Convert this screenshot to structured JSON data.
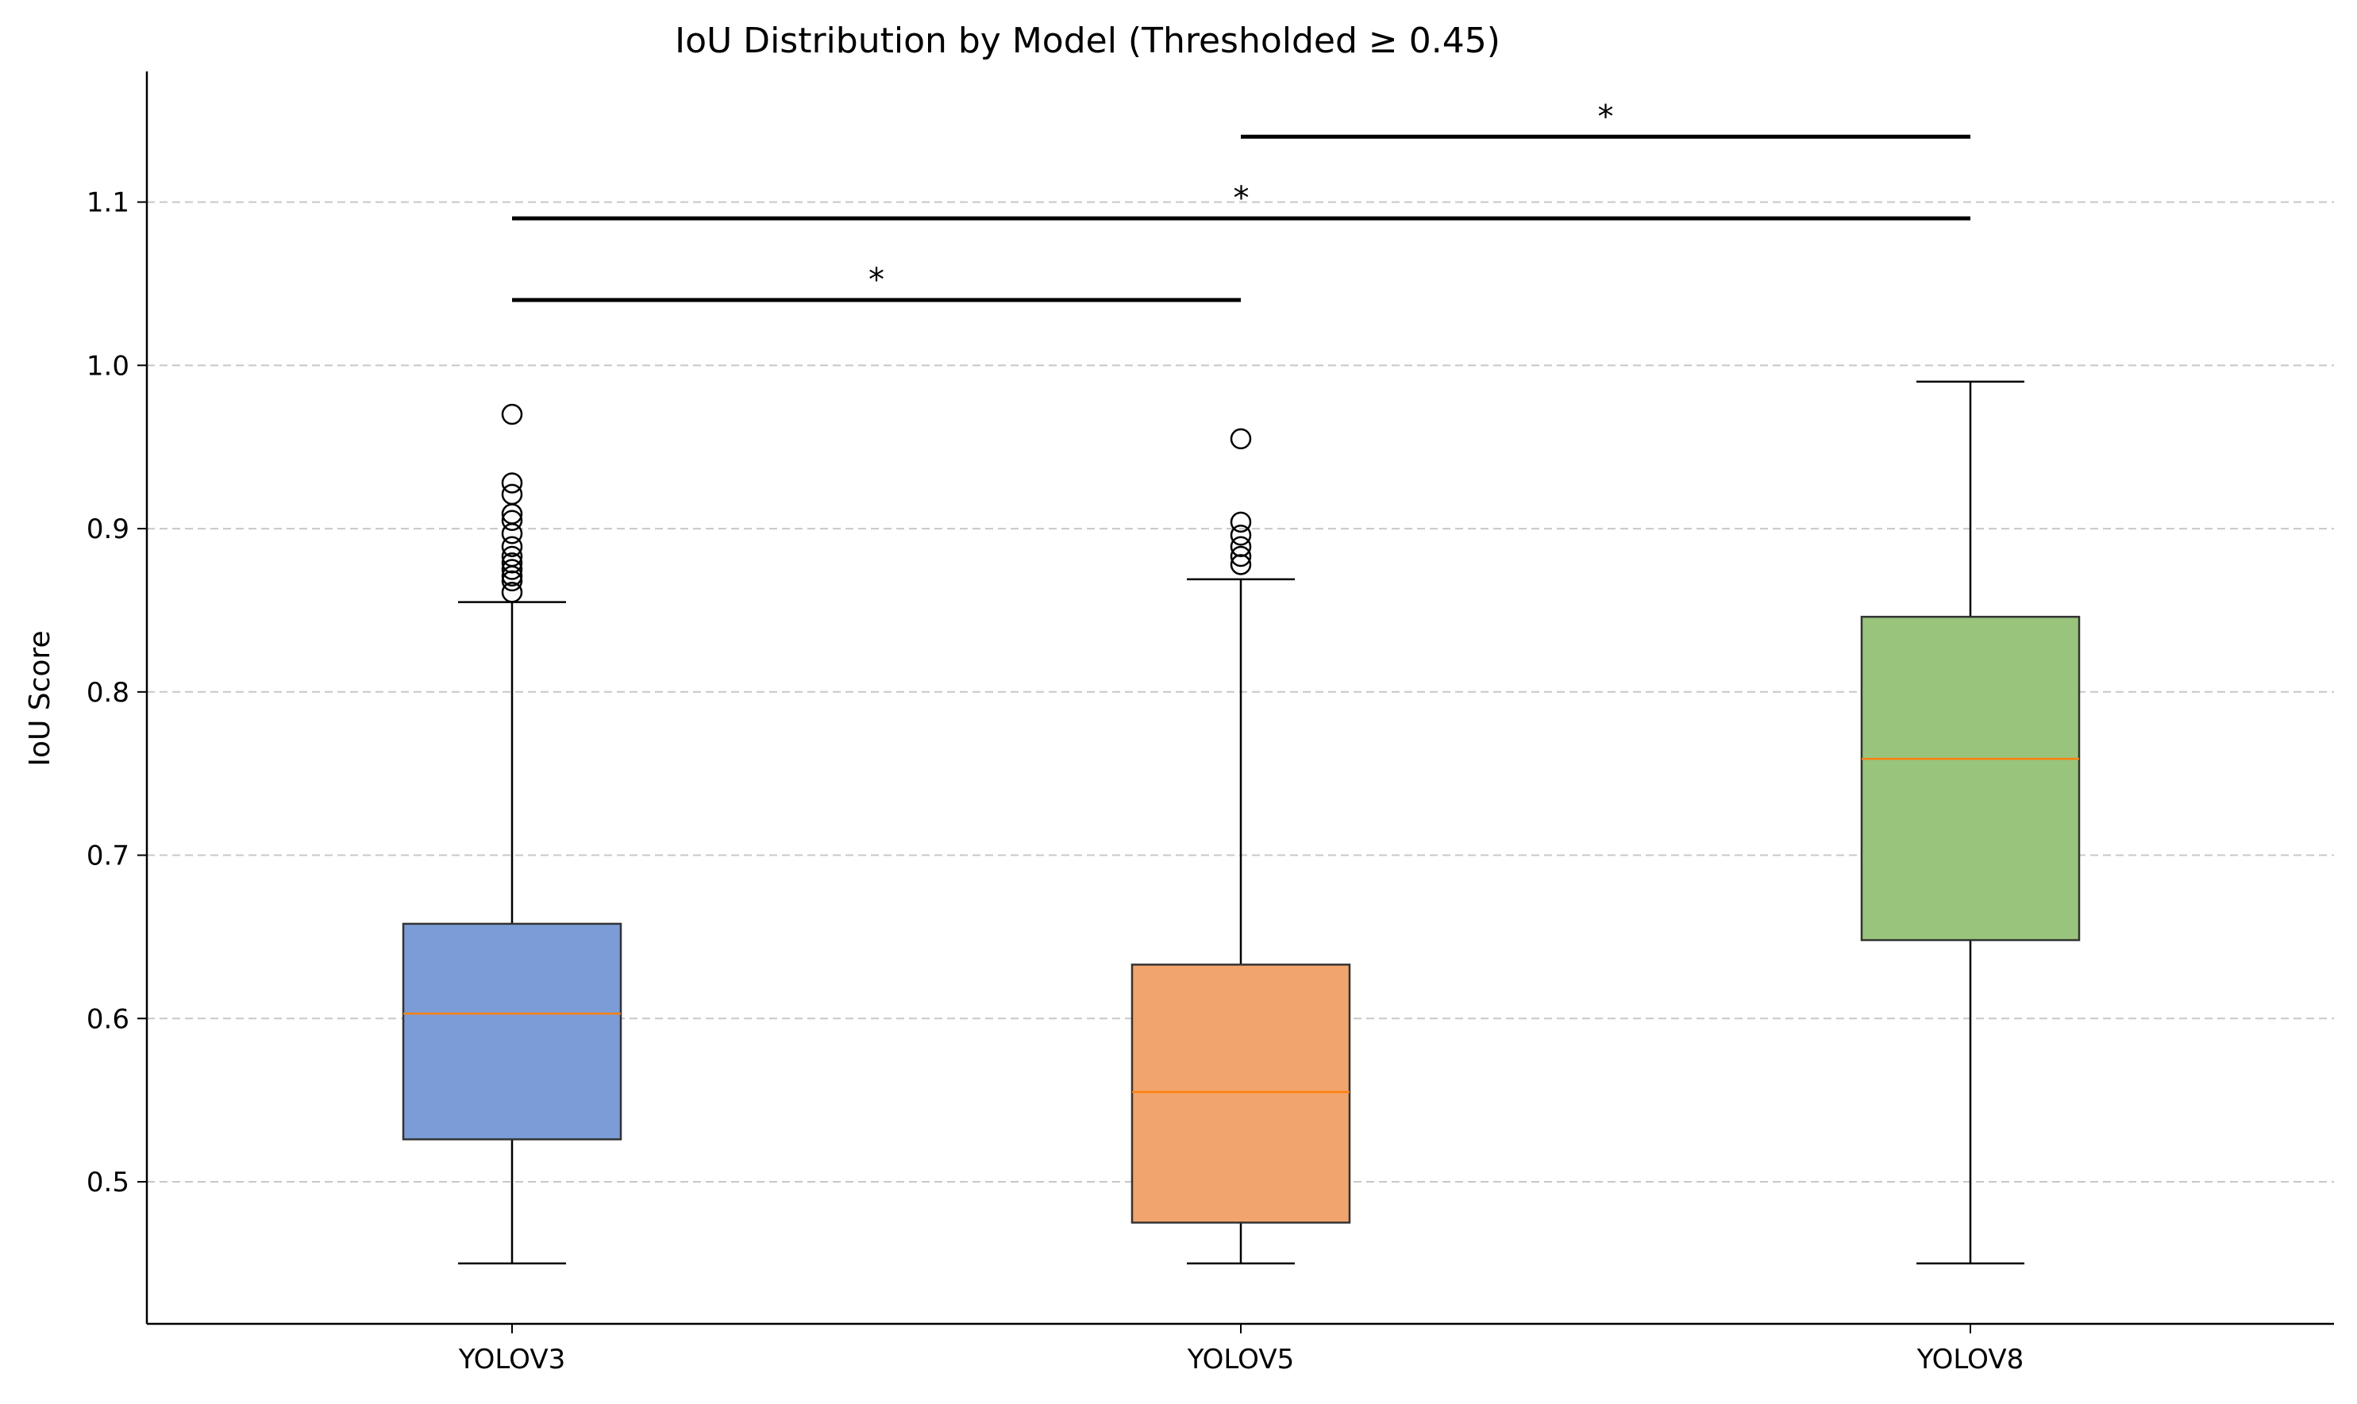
{
  "chart_data": {
    "type": "box",
    "title": "IoU Distribution by Model (Thresholded ≥ 0.45)",
    "xlabel": "",
    "ylabel": "IoU Score",
    "ylim": [
      0.413,
      1.18
    ],
    "yticks": [
      0.5,
      0.6,
      0.7,
      0.8,
      0.9,
      1.0,
      1.1
    ],
    "ytick_labels": [
      "0.5",
      "0.6",
      "0.7",
      "0.8",
      "0.9",
      "1.0",
      "1.1"
    ],
    "grid": "y-dashed",
    "categories": [
      "YOLOV3",
      "YOLOV5",
      "YOLOV8"
    ],
    "boxes": [
      {
        "category": "YOLOV3",
        "whisker_low": 0.45,
        "q1": 0.526,
        "median": 0.603,
        "q3": 0.658,
        "whisker_high": 0.855,
        "outliers": [
          0.97,
          0.928,
          0.921,
          0.909,
          0.905,
          0.897,
          0.889,
          0.883,
          0.879,
          0.875,
          0.871,
          0.868,
          0.861
        ],
        "color": "#7b9cd6"
      },
      {
        "category": "YOLOV5",
        "whisker_low": 0.45,
        "q1": 0.475,
        "median": 0.555,
        "q3": 0.633,
        "whisker_high": 0.869,
        "outliers": [
          0.955,
          0.904,
          0.896,
          0.889,
          0.883,
          0.878
        ],
        "color": "#f2a46d"
      },
      {
        "category": "YOLOV8",
        "whisker_low": 0.45,
        "q1": 0.648,
        "median": 0.759,
        "q3": 0.846,
        "whisker_high": 0.99,
        "outliers": [],
        "color": "#98c47c"
      }
    ],
    "significance": [
      {
        "from": "YOLOV3",
        "to": "YOLOV5",
        "y": 1.04,
        "label": "*"
      },
      {
        "from": "YOLOV3",
        "to": "YOLOV8",
        "y": 1.09,
        "label": "*"
      },
      {
        "from": "YOLOV5",
        "to": "YOLOV8",
        "y": 1.14,
        "label": "*"
      }
    ],
    "median_color": "#ff7f0e"
  }
}
